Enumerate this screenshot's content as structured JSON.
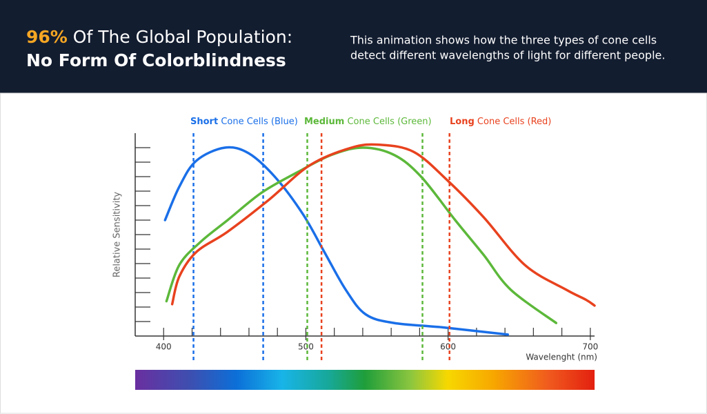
{
  "header": {
    "title_highlight": "96%",
    "title_rest": "Of The Global Population:",
    "title_line2": "No Form Of Colorblindness",
    "description": [
      "This animation shows how the three types of cone cells",
      "detect different wavelengths of light for different people."
    ]
  },
  "chart_data": {
    "type": "line",
    "xlabel": "Wavelenght (nm)",
    "ylabel": "Relative Sensitivity",
    "xlim": [
      380,
      703
    ],
    "xticks": [
      400,
      500,
      600,
      700
    ],
    "xminor_step": 20,
    "ylim": [
      0,
      14
    ],
    "yminor_step": 1,
    "series": [
      {
        "label_bold": "Short",
        "label": "Cone Cells (Blue)",
        "color": "#1a6fe8",
        "bands": [
          421,
          470
        ],
        "x": [
          401,
          411,
          423,
          443,
          460,
          479,
          498,
          513,
          528,
          542,
          562,
          596,
          642
        ],
        "values": [
          8.0,
          10.3,
          12.1,
          13.0,
          12.6,
          10.9,
          8.4,
          5.8,
          3.2,
          1.5,
          0.9,
          0.6,
          0.1
        ]
      },
      {
        "label_bold": "Medium",
        "label": "Cone Cells (Green)",
        "color": "#5cb83a",
        "bands": [
          501,
          582
        ],
        "x": [
          402,
          411,
          426,
          445,
          469,
          494,
          518,
          540,
          562,
          581,
          605,
          625,
          644,
          676
        ],
        "values": [
          2.4,
          4.9,
          6.5,
          8.0,
          9.9,
          11.3,
          12.5,
          13.0,
          12.5,
          11.0,
          8.0,
          5.6,
          3.2,
          0.9
        ]
      },
      {
        "label_bold": "Long",
        "label": "Cone Cells (Red)",
        "color": "#e8421e",
        "bands": [
          511,
          601
        ],
        "x": [
          406,
          411,
          423,
          445,
          474,
          503,
          532,
          552,
          576,
          600,
          625,
          654,
          683,
          697,
          703
        ],
        "values": [
          2.2,
          4.1,
          5.8,
          7.2,
          9.4,
          11.8,
          13.0,
          13.2,
          12.7,
          10.7,
          8.2,
          4.9,
          3.2,
          2.5,
          2.1
        ]
      }
    ]
  }
}
